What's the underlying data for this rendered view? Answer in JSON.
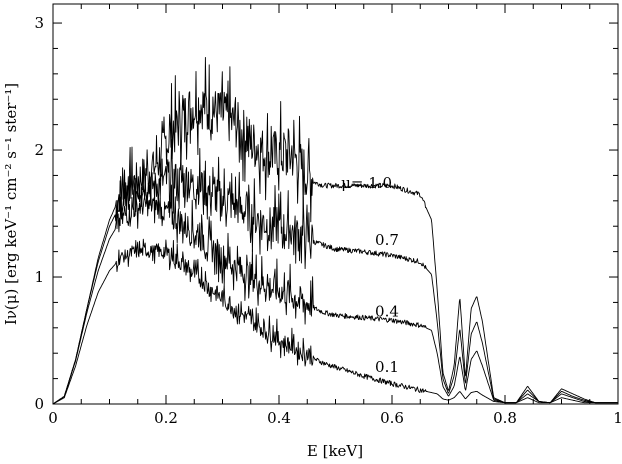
{
  "chart_data": {
    "type": "line",
    "title": "",
    "xlabel": "E [keV]",
    "ylabel": "Iν(μ) [erg keV⁻¹ cm⁻² s⁻¹ ster⁻¹]",
    "xlim": [
      0,
      1
    ],
    "ylim": [
      0,
      3.15
    ],
    "x_ticks": [
      "0",
      "0.2",
      "0.4",
      "0.6",
      "0.8",
      "1"
    ],
    "y_ticks": [
      "0",
      "1",
      "2",
      "3"
    ],
    "grid": false,
    "legend": "none",
    "annotations": [
      {
        "text": "μ= 1.0",
        "x": 0.51,
        "y": 1.74
      },
      {
        "text": "0.7",
        "x": 0.57,
        "y": 1.29
      },
      {
        "text": "0.4",
        "x": 0.57,
        "y": 0.73
      },
      {
        "text": "0.1",
        "x": 0.57,
        "y": 0.29
      }
    ],
    "series": [
      {
        "mu": 1.0,
        "x": [
          0,
          0.02,
          0.04,
          0.06,
          0.08,
          0.1,
          0.12,
          0.14,
          0.16,
          0.18,
          0.2,
          0.22,
          0.24,
          0.26,
          0.28,
          0.3,
          0.32,
          0.34,
          0.36,
          0.38,
          0.4,
          0.42,
          0.44,
          0.46,
          0.48,
          0.5,
          0.55,
          0.6,
          0.65,
          0.67,
          0.68,
          0.69,
          0.7,
          0.71,
          0.72,
          0.73,
          0.74,
          0.75,
          0.76,
          0.78,
          0.8,
          0.82,
          0.84,
          0.86,
          0.88,
          0.9,
          0.92,
          0.94,
          0.96,
          1.0
        ],
        "y": [
          0,
          0.06,
          0.35,
          0.75,
          1.15,
          1.45,
          1.65,
          1.72,
          1.8,
          1.85,
          2.05,
          2.15,
          2.3,
          2.35,
          2.3,
          2.25,
          2.2,
          2.1,
          2.0,
          1.95,
          1.95,
          1.95,
          1.85,
          1.75,
          1.72,
          1.72,
          1.72,
          1.72,
          1.65,
          1.45,
          0.9,
          0.25,
          0.1,
          0.3,
          0.85,
          0.2,
          0.75,
          0.85,
          0.65,
          0.05,
          0.01,
          0.01,
          0.14,
          0.02,
          0.01,
          0.12,
          0.08,
          0.04,
          0.01,
          0.01
        ]
      },
      {
        "mu": 0.7,
        "x": [
          0,
          0.02,
          0.04,
          0.06,
          0.08,
          0.1,
          0.12,
          0.14,
          0.16,
          0.18,
          0.2,
          0.22,
          0.24,
          0.26,
          0.28,
          0.3,
          0.32,
          0.34,
          0.36,
          0.38,
          0.4,
          0.42,
          0.44,
          0.46,
          0.48,
          0.5,
          0.55,
          0.6,
          0.65,
          0.67,
          0.68,
          0.69,
          0.7,
          0.71,
          0.72,
          0.73,
          0.74,
          0.75,
          0.76,
          0.78,
          0.8,
          0.82,
          0.84,
          0.86,
          0.88,
          0.9,
          0.92,
          0.94,
          0.96,
          1.0
        ],
        "y": [
          0,
          0.06,
          0.35,
          0.75,
          1.12,
          1.4,
          1.58,
          1.65,
          1.7,
          1.72,
          1.75,
          1.75,
          1.72,
          1.7,
          1.65,
          1.6,
          1.55,
          1.5,
          1.45,
          1.4,
          1.38,
          1.35,
          1.32,
          1.28,
          1.25,
          1.22,
          1.2,
          1.17,
          1.12,
          1.02,
          0.65,
          0.2,
          0.08,
          0.22,
          0.6,
          0.15,
          0.55,
          0.65,
          0.48,
          0.04,
          0.01,
          0.01,
          0.11,
          0.02,
          0.01,
          0.1,
          0.06,
          0.03,
          0.01,
          0.01
        ]
      },
      {
        "mu": 0.4,
        "x": [
          0,
          0.02,
          0.04,
          0.06,
          0.08,
          0.1,
          0.12,
          0.14,
          0.16,
          0.18,
          0.2,
          0.22,
          0.24,
          0.26,
          0.28,
          0.3,
          0.32,
          0.34,
          0.36,
          0.38,
          0.4,
          0.42,
          0.44,
          0.46,
          0.48,
          0.5,
          0.55,
          0.6,
          0.65,
          0.67,
          0.68,
          0.69,
          0.7,
          0.71,
          0.72,
          0.73,
          0.74,
          0.75,
          0.76,
          0.78,
          0.8,
          0.82,
          0.84,
          0.86,
          0.88,
          0.9,
          0.92,
          0.94,
          0.96,
          1.0
        ],
        "y": [
          0,
          0.06,
          0.34,
          0.72,
          1.05,
          1.3,
          1.45,
          1.52,
          1.55,
          1.55,
          1.5,
          1.45,
          1.38,
          1.3,
          1.22,
          1.15,
          1.08,
          1.02,
          0.97,
          0.92,
          0.88,
          0.85,
          0.8,
          0.76,
          0.72,
          0.7,
          0.68,
          0.66,
          0.62,
          0.58,
          0.4,
          0.14,
          0.06,
          0.14,
          0.38,
          0.1,
          0.35,
          0.42,
          0.3,
          0.03,
          0.01,
          0.01,
          0.08,
          0.02,
          0.01,
          0.08,
          0.05,
          0.02,
          0.01,
          0.01
        ]
      },
      {
        "mu": 0.1,
        "x": [
          0,
          0.02,
          0.04,
          0.06,
          0.08,
          0.1,
          0.12,
          0.14,
          0.16,
          0.18,
          0.2,
          0.22,
          0.24,
          0.26,
          0.28,
          0.3,
          0.32,
          0.34,
          0.36,
          0.38,
          0.4,
          0.42,
          0.44,
          0.46,
          0.48,
          0.5,
          0.55,
          0.6,
          0.65,
          0.67,
          0.68,
          0.69,
          0.7,
          0.71,
          0.72,
          0.73,
          0.74,
          0.75,
          0.76,
          0.78,
          0.8,
          0.82,
          0.84,
          0.86,
          0.88,
          0.9,
          0.92,
          0.94,
          0.96,
          1.0
        ],
        "y": [
          0,
          0.05,
          0.3,
          0.62,
          0.88,
          1.05,
          1.15,
          1.18,
          1.2,
          1.2,
          1.18,
          1.13,
          1.05,
          0.98,
          0.9,
          0.82,
          0.75,
          0.68,
          0.62,
          0.56,
          0.5,
          0.45,
          0.4,
          0.36,
          0.32,
          0.29,
          0.22,
          0.16,
          0.11,
          0.09,
          0.08,
          0.04,
          0.03,
          0.05,
          0.1,
          0.04,
          0.09,
          0.1,
          0.07,
          0.02,
          0.01,
          0.01,
          0.05,
          0.01,
          0.01,
          0.05,
          0.03,
          0.01,
          0.01,
          0.01
        ]
      }
    ]
  }
}
